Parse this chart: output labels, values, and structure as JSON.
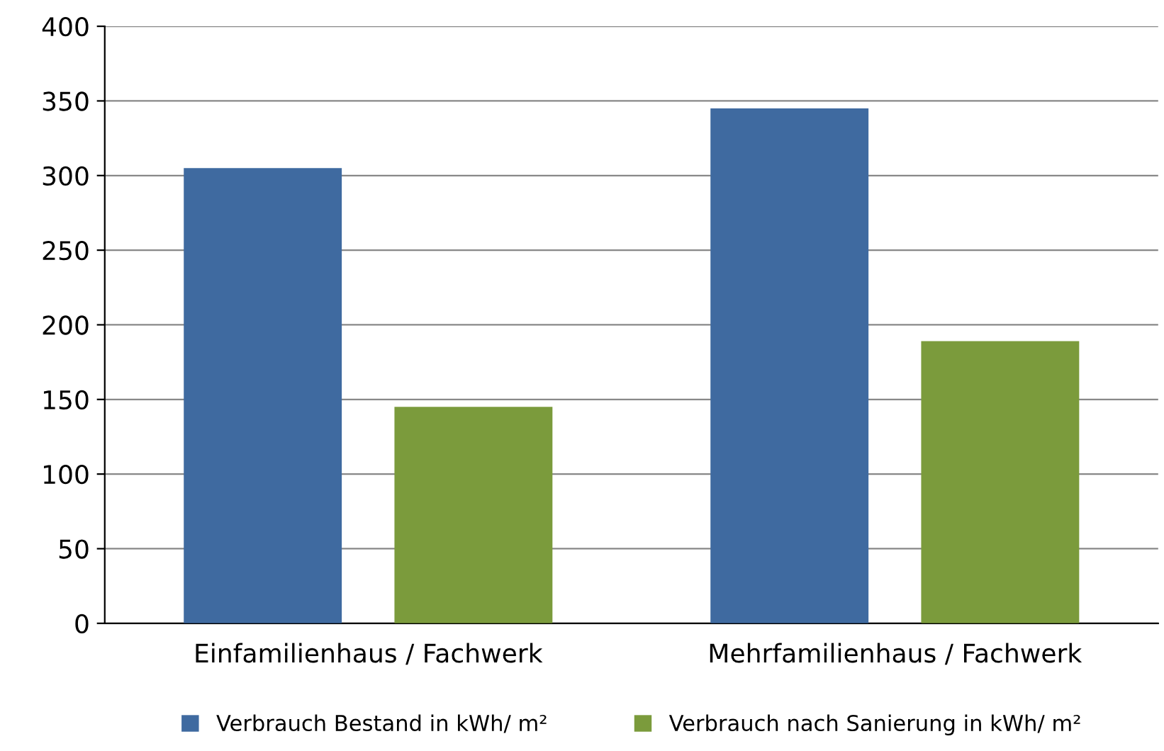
{
  "chart_data": {
    "type": "bar",
    "categories": [
      "Einfamilienhaus / Fachwerk",
      "Mehrfamilienhaus / Fachwerk"
    ],
    "series": [
      {
        "name": "Verbrauch Bestand in kWh/ m²",
        "color": "#3f6aa0",
        "values": [
          305,
          345
        ]
      },
      {
        "name": "Verbrauch nach Sanierung in kWh/ m²",
        "color": "#7b9b3c",
        "values": [
          145,
          189
        ]
      }
    ],
    "ylim": [
      0,
      400
    ],
    "yticks": [
      0,
      50,
      100,
      150,
      200,
      250,
      300,
      350,
      400
    ],
    "grid": "y",
    "legend": "bottom"
  }
}
